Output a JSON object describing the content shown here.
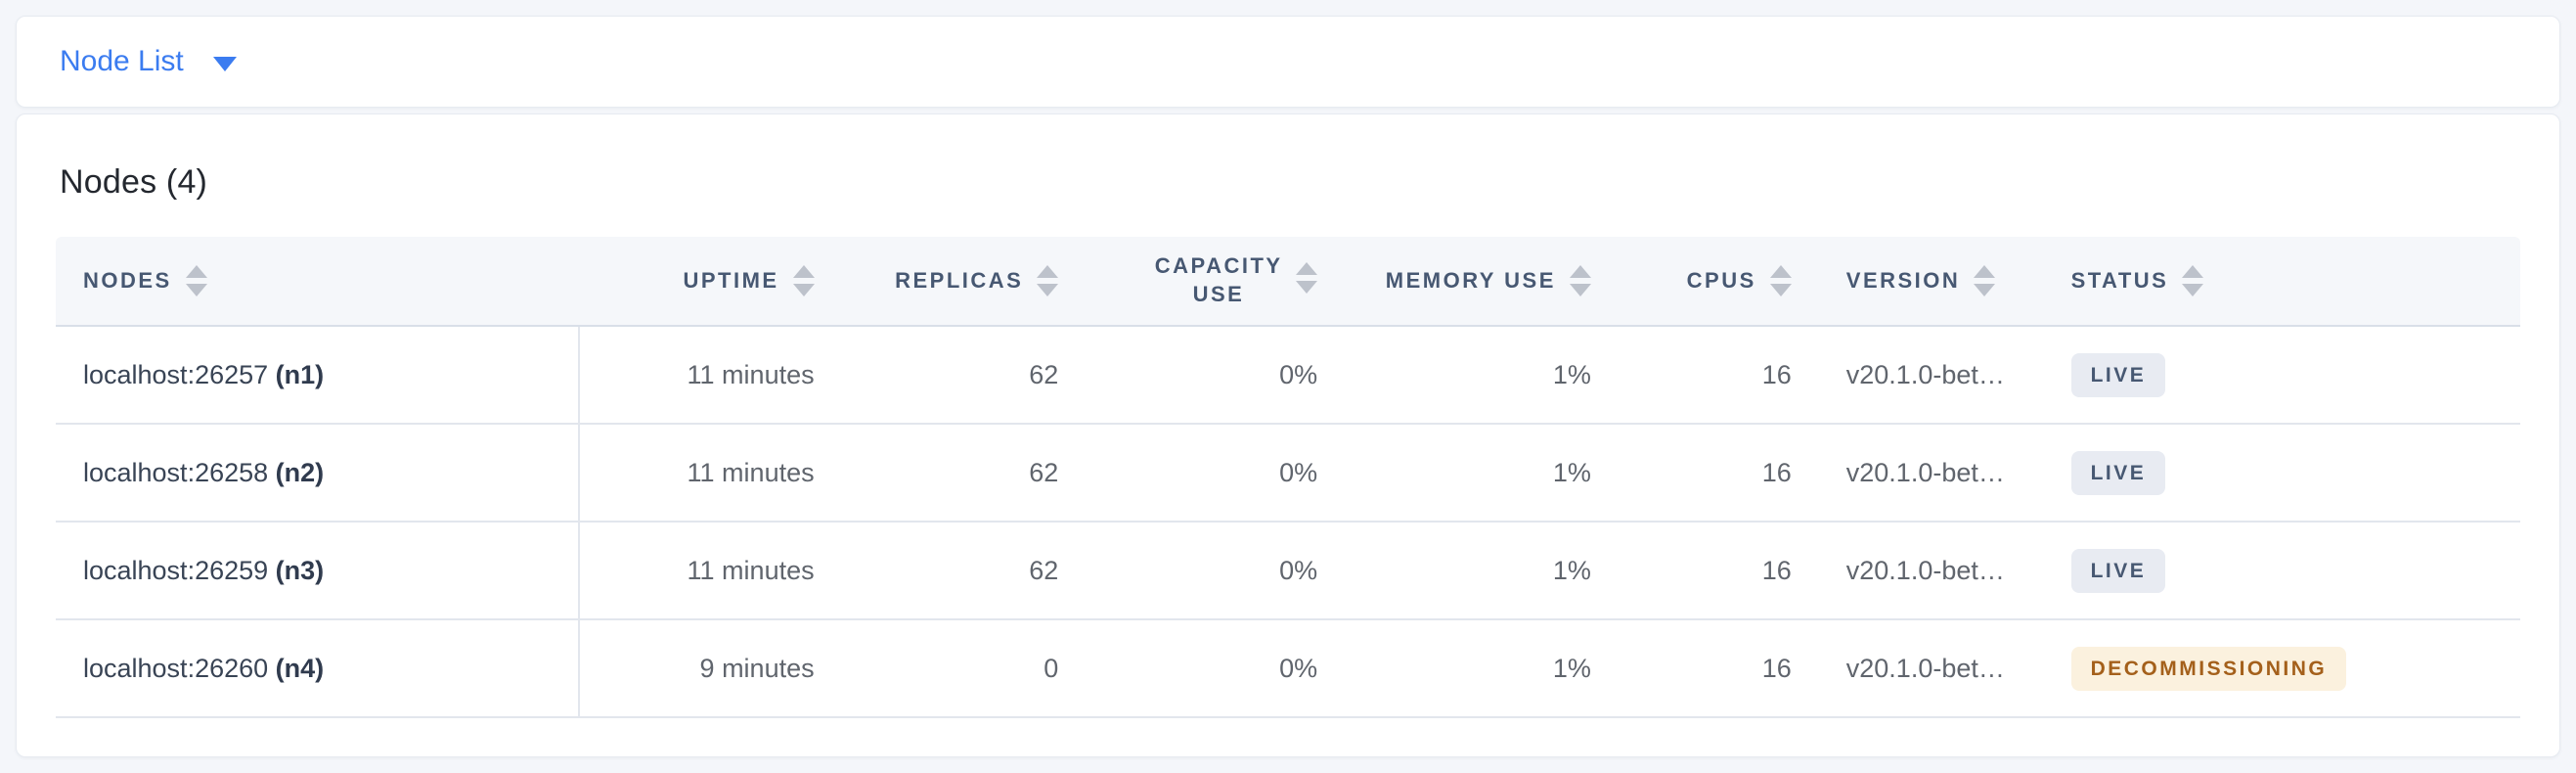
{
  "selector": {
    "label": "Node List",
    "caret_icon": "caret-down-icon"
  },
  "main": {
    "title": "Nodes (4)"
  },
  "table": {
    "columns": [
      {
        "id": "nodes",
        "label": "NODES",
        "align": "left",
        "wrap": false,
        "sort_icon": "sort-arrows-icon"
      },
      {
        "id": "uptime",
        "label": "UPTIME",
        "align": "right",
        "wrap": false,
        "sort_icon": "sort-arrows-icon"
      },
      {
        "id": "replicas",
        "label": "REPLICAS",
        "align": "right",
        "wrap": false,
        "sort_icon": "sort-arrows-icon"
      },
      {
        "id": "capacity-use",
        "label": "CAPACITY USE",
        "align": "right",
        "wrap": true,
        "sort_icon": "sort-arrows-icon"
      },
      {
        "id": "memory-use",
        "label": "MEMORY USE",
        "align": "right",
        "wrap": false,
        "sort_icon": "sort-arrows-icon"
      },
      {
        "id": "cpus",
        "label": "CPUS",
        "align": "right",
        "wrap": false,
        "sort_icon": "sort-arrows-icon"
      },
      {
        "id": "version",
        "label": "VERSION",
        "align": "left",
        "wrap": false,
        "sort_icon": "sort-arrows-icon"
      },
      {
        "id": "status",
        "label": "STATUS",
        "align": "left",
        "wrap": false,
        "sort_icon": "sort-arrows-icon"
      }
    ],
    "rows": [
      {
        "address": "localhost:26257",
        "node_id": "(n1)",
        "uptime": "11 minutes",
        "replicas": "62",
        "capacity_use": "0%",
        "memory_use": "1%",
        "cpus": "16",
        "version": "v20.1.0-bet…",
        "status": {
          "label": "LIVE",
          "type": "live"
        }
      },
      {
        "address": "localhost:26258",
        "node_id": "(n2)",
        "uptime": "11 minutes",
        "replicas": "62",
        "capacity_use": "0%",
        "memory_use": "1%",
        "cpus": "16",
        "version": "v20.1.0-bet…",
        "status": {
          "label": "LIVE",
          "type": "live"
        }
      },
      {
        "address": "localhost:26259",
        "node_id": "(n3)",
        "uptime": "11 minutes",
        "replicas": "62",
        "capacity_use": "0%",
        "memory_use": "1%",
        "cpus": "16",
        "version": "v20.1.0-bet…",
        "status": {
          "label": "LIVE",
          "type": "live"
        }
      },
      {
        "address": "localhost:26260",
        "node_id": "(n4)",
        "uptime": "9 minutes",
        "replicas": "0",
        "capacity_use": "0%",
        "memory_use": "1%",
        "cpus": "16",
        "version": "v20.1.0-bet…",
        "status": {
          "label": "DECOMMISSIONING",
          "type": "decommissioning"
        }
      }
    ]
  },
  "colors": {
    "accent_blue": "#3b7cf0",
    "page_background": "#f4f6fa",
    "header_text": "#475872",
    "live_badge_background": "#e8ebf2",
    "live_badge_text": "#475872",
    "decommissioning_badge_background": "#fbf1de",
    "decommissioning_badge_text": "#a4601b"
  }
}
